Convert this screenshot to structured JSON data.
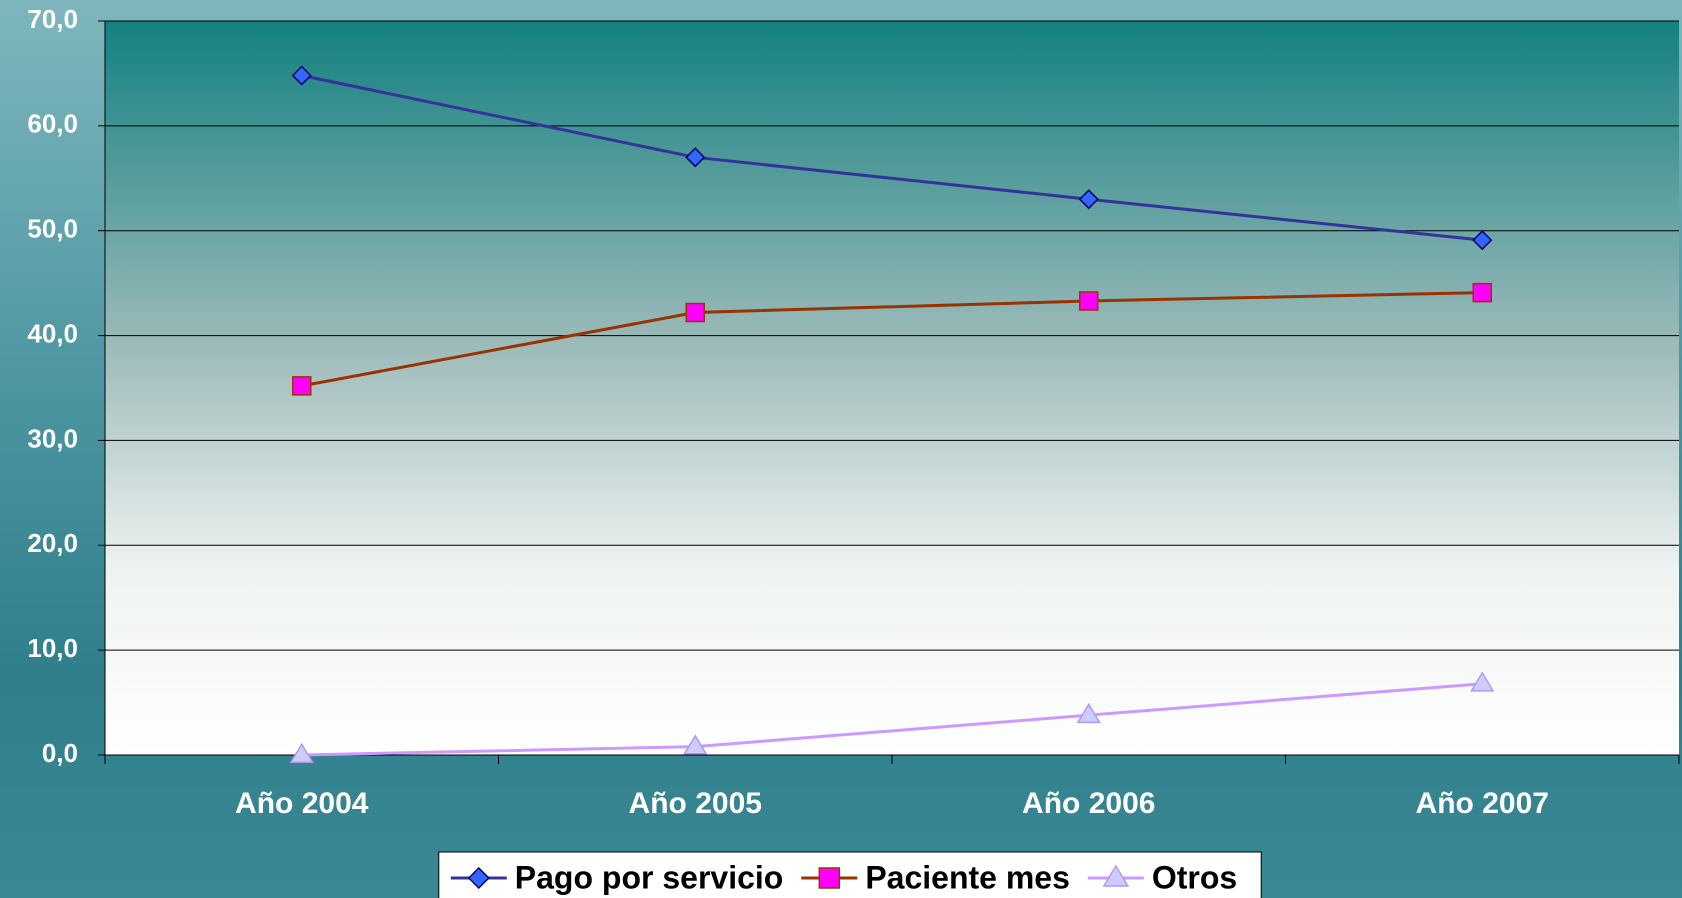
{
  "chart_data": {
    "type": "line",
    "categories": [
      "Año 2004",
      "Año 2005",
      "Año 2006",
      "Año 2007"
    ],
    "series": [
      {
        "name": "Pago por servicio",
        "color": "#333399",
        "marker": "diamond",
        "marker_color": "#3366ff",
        "values": [
          64.8,
          57.0,
          53.0,
          49.1
        ]
      },
      {
        "name": "Paciente mes",
        "color": "#993300",
        "marker": "square",
        "marker_color": "#ff00ff",
        "values": [
          35.2,
          42.2,
          43.3,
          44.1
        ]
      },
      {
        "name": "Otros",
        "color": "#cc99ff",
        "marker": "triangle",
        "marker_color": "#ccccff",
        "values": [
          0.0,
          0.8,
          3.8,
          6.8
        ]
      }
    ],
    "ylim": [
      0,
      70
    ],
    "yticks": [
      {
        "value": 0,
        "label": "0,0"
      },
      {
        "value": 10,
        "label": "10,0"
      },
      {
        "value": 20,
        "label": "20,0"
      },
      {
        "value": 30,
        "label": "30,0"
      },
      {
        "value": 40,
        "label": "40,0"
      },
      {
        "value": 50,
        "label": "50,0"
      },
      {
        "value": 60,
        "label": "60,0"
      },
      {
        "value": 70,
        "label": "70,0"
      }
    ],
    "grid": true,
    "legend": "bottom"
  }
}
